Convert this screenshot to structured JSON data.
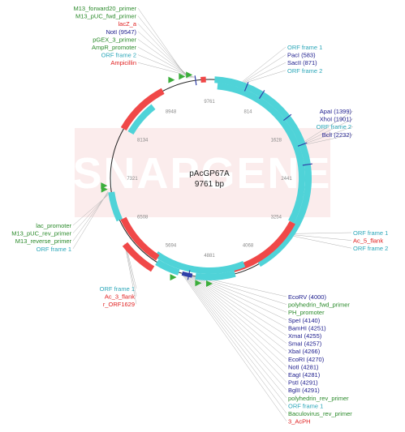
{
  "plasmid": {
    "name": "pAcGP67A",
    "size": "9761 bp"
  },
  "watermark": "SNAPGENE",
  "colors": {
    "green": "#2a8a2a",
    "blue": "#1a1a8c",
    "red": "#e02020",
    "cyan": "#2aa6b8",
    "feature_cyan": "#4fd3d8",
    "feature_red": "#f04848",
    "feature_green": "#3cae3c",
    "feature_blue": "#2f3fa8",
    "backbone": "#222222",
    "leader": "#b0b0b0"
  },
  "ticks": [
    "9761",
    "814",
    "1628",
    "2441",
    "3254",
    "4068",
    "4881",
    "5694",
    "6508",
    "7321",
    "8134",
    "8948"
  ],
  "labels": {
    "left_top": [
      {
        "text": "M13_forward20_primer",
        "color": "green"
      },
      {
        "text": "M13_pUC_fwd_primer",
        "color": "green"
      },
      {
        "text": "lacZ_a",
        "color": "red"
      },
      {
        "text": "NotI  (9547)",
        "color": "blue"
      },
      {
        "text": "pGEX_3_primer",
        "color": "green"
      },
      {
        "text": "AmpR_promoter",
        "color": "green"
      },
      {
        "text": "ORF frame 2",
        "color": "cyan"
      },
      {
        "text": "Ampicillin",
        "color": "red"
      }
    ],
    "right_top": [
      {
        "text": "ORF frame 1",
        "color": "cyan"
      },
      {
        "text": "PacI  (583)",
        "color": "blue"
      },
      {
        "text": "SacII  (871)",
        "color": "blue"
      },
      {
        "text": "ORF frame 2",
        "color": "cyan"
      }
    ],
    "right_mid": [
      {
        "text": "ApaI  (1399)",
        "color": "blue"
      },
      {
        "text": "XhoI  (1901)",
        "color": "blue"
      },
      {
        "text": "ORF frame 2",
        "color": "cyan"
      },
      {
        "text": "BclI  (2232)",
        "color": "blue"
      }
    ],
    "right_lower": [
      {
        "text": "ORF frame 1",
        "color": "cyan"
      },
      {
        "text": "Ac_5_flank",
        "color": "red"
      },
      {
        "text": "ORF frame 2",
        "color": "cyan"
      }
    ],
    "left_mid": [
      {
        "text": "lac_promoter",
        "color": "green"
      },
      {
        "text": "M13_pUC_rev_primer",
        "color": "green"
      },
      {
        "text": "M13_reverse_primer",
        "color": "green"
      },
      {
        "text": "ORF frame 1",
        "color": "cyan"
      }
    ],
    "left_bottom": [
      {
        "text": "ORF frame 1",
        "color": "cyan"
      },
      {
        "text": "Ac_3_flank",
        "color": "red"
      },
      {
        "text": "r_ORF1629",
        "color": "red"
      }
    ],
    "bottom": [
      {
        "text": "EcoRV  (4000)",
        "color": "blue"
      },
      {
        "text": "polyhedrin_fwd_primer",
        "color": "green"
      },
      {
        "text": "PH_promoter",
        "color": "green"
      },
      {
        "text": "SpeI  (4140)",
        "color": "blue"
      },
      {
        "text": "BamHI  (4251)",
        "color": "blue"
      },
      {
        "text": "XmaI  (4255)",
        "color": "blue"
      },
      {
        "text": "SmaI  (4257)",
        "color": "blue"
      },
      {
        "text": "XbaI  (4266)",
        "color": "blue"
      },
      {
        "text": "EcoRI  (4270)",
        "color": "blue"
      },
      {
        "text": "NotI  (4281)",
        "color": "blue"
      },
      {
        "text": "EagI  (4281)",
        "color": "blue"
      },
      {
        "text": "PstI  (4291)",
        "color": "blue"
      },
      {
        "text": "BglII  (4291)",
        "color": "blue"
      },
      {
        "text": "polyhedrin_rev_primer",
        "color": "green"
      },
      {
        "text": "ORF frame 1",
        "color": "cyan"
      },
      {
        "text": "Baculovirus_rev_primer",
        "color": "green"
      },
      {
        "text": "3_AcPH",
        "color": "red"
      }
    ]
  }
}
